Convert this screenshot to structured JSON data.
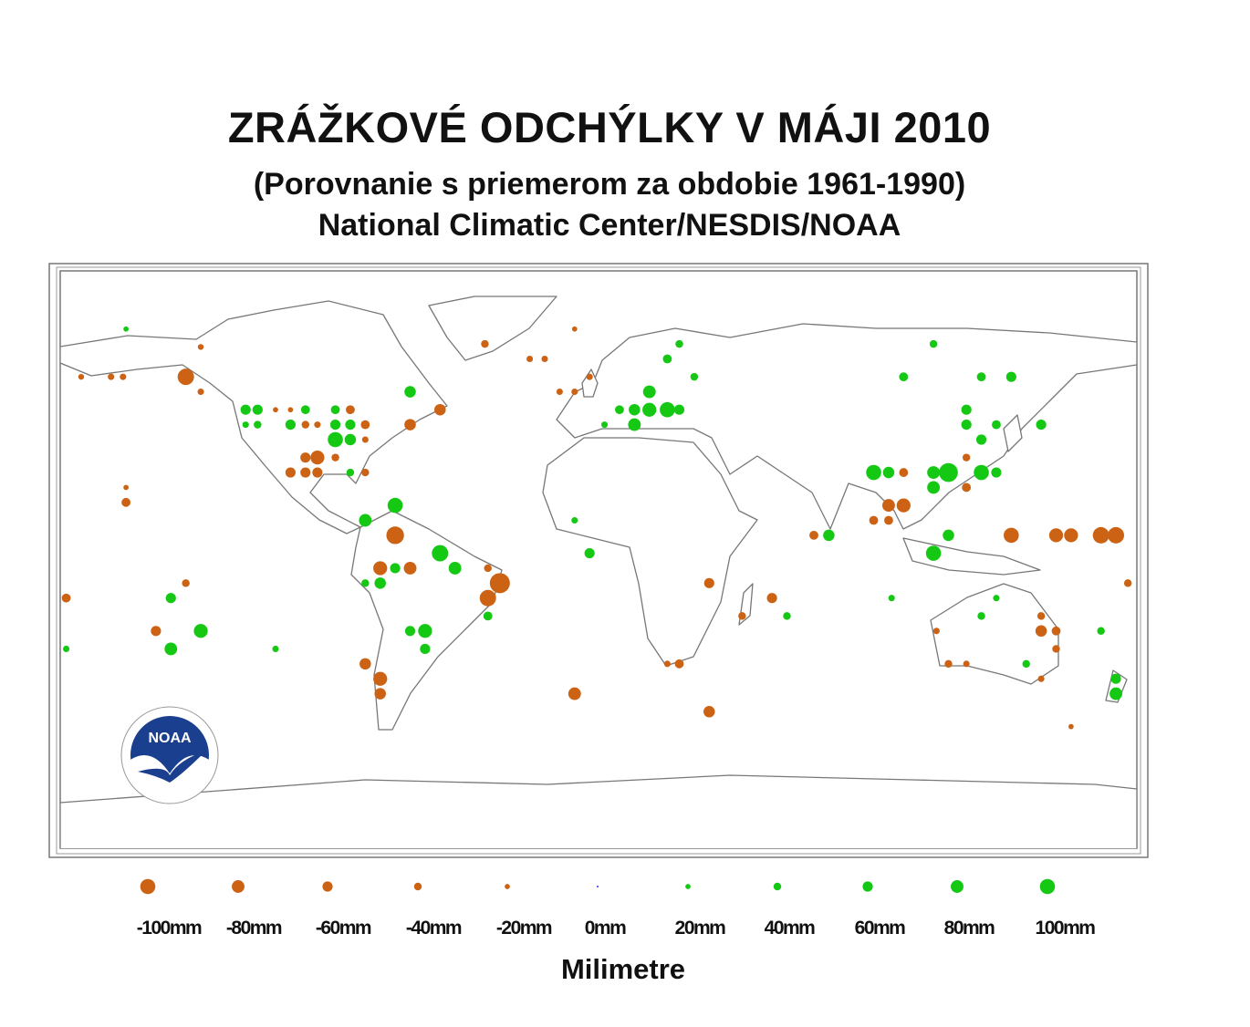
{
  "title": "ZRÁŽKOVÉ ODCHÝLKY V MÁJI 2010",
  "subtitle": "(Porovnanie s priemerom za obdobie 1961-1990)",
  "source": "National Climatic Center/NESDIS/NOAA",
  "logo_text": "NOAA",
  "colors": {
    "deficit": "#cc6214",
    "surplus": "#14c814",
    "zero": "#3333ff"
  },
  "legend": {
    "unit_label": "Milimetre",
    "items": [
      {
        "value": -100,
        "label": "-100mm"
      },
      {
        "value": -80,
        "label": "-80mm"
      },
      {
        "value": -60,
        "label": "-60mm"
      },
      {
        "value": -40,
        "label": "-40mm"
      },
      {
        "value": -20,
        "label": "-20mm"
      },
      {
        "value": 0,
        "label": "0mm"
      },
      {
        "value": 20,
        "label": "20mm"
      },
      {
        "value": 40,
        "label": "40mm"
      },
      {
        "value": 60,
        "label": "60mm"
      },
      {
        "value": 80,
        "label": "80mm"
      },
      {
        "value": 100,
        "label": "100mm"
      }
    ]
  },
  "chart_data": {
    "type": "scatter",
    "projection": "equirectangular",
    "xlim": [
      -180,
      180
    ],
    "ylim": [
      -90,
      90
    ],
    "fields": [
      "lon",
      "lat",
      "anomaly_mm"
    ],
    "points": [
      [
        -138,
        57,
        -110
      ],
      [
        -158,
        73,
        20
      ],
      [
        -133,
        67,
        -25
      ],
      [
        -173,
        57,
        -25
      ],
      [
        -163,
        57,
        -30
      ],
      [
        -159,
        57,
        -30
      ],
      [
        -133,
        52,
        -30
      ],
      [
        -118,
        46,
        60
      ],
      [
        -114,
        46,
        60
      ],
      [
        -108,
        46,
        -20
      ],
      [
        -103,
        46,
        -20
      ],
      [
        -98,
        46,
        50
      ],
      [
        -88,
        46,
        50
      ],
      [
        -83,
        46,
        -50
      ],
      [
        -118,
        41,
        30
      ],
      [
        -114,
        41,
        40
      ],
      [
        -103,
        41,
        60
      ],
      [
        -98,
        41,
        -40
      ],
      [
        -94,
        41,
        -30
      ],
      [
        -88,
        41,
        60
      ],
      [
        -83,
        41,
        60
      ],
      [
        -78,
        41,
        -50
      ],
      [
        -63,
        41,
        -70
      ],
      [
        -53,
        46,
        -70
      ],
      [
        -63,
        52,
        70
      ],
      [
        -88,
        36,
        100
      ],
      [
        -83,
        36,
        70
      ],
      [
        -78,
        36,
        -30
      ],
      [
        -98,
        30,
        -60
      ],
      [
        -94,
        30,
        -90
      ],
      [
        -88,
        30,
        -40
      ],
      [
        -103,
        25,
        -60
      ],
      [
        -98,
        25,
        -60
      ],
      [
        -94,
        25,
        -60
      ],
      [
        -83,
        25,
        40
      ],
      [
        -78,
        25,
        -40
      ],
      [
        -38,
        68,
        -40
      ],
      [
        -158,
        15,
        -50
      ],
      [
        -158,
        20,
        -20
      ],
      [
        -68,
        14,
        100
      ],
      [
        -78,
        9,
        80
      ],
      [
        -68,
        4,
        -120
      ],
      [
        -53,
        -2,
        110
      ],
      [
        -73,
        -7,
        -90
      ],
      [
        -68,
        -7,
        60
      ],
      [
        -63,
        -7,
        -80
      ],
      [
        -48,
        -7,
        80
      ],
      [
        -37,
        -7,
        -40
      ],
      [
        -33,
        -12,
        -140
      ],
      [
        -37,
        -17,
        -110
      ],
      [
        -37,
        -23,
        50
      ],
      [
        -78,
        -12,
        40
      ],
      [
        -73,
        -12,
        70
      ],
      [
        -63,
        -28,
        60
      ],
      [
        -58,
        -28,
        90
      ],
      [
        -58,
        -34,
        60
      ],
      [
        -78,
        -39,
        -70
      ],
      [
        -73,
        -44,
        -90
      ],
      [
        -73,
        -49,
        -70
      ],
      [
        -178,
        -17,
        -50
      ],
      [
        -143,
        -17,
        60
      ],
      [
        -138,
        -12,
        -40
      ],
      [
        -148,
        -28,
        -60
      ],
      [
        -133,
        -28,
        90
      ],
      [
        -143,
        -34,
        80
      ],
      [
        -178,
        -34,
        30
      ],
      [
        -108,
        -34,
        30
      ],
      [
        -8,
        -49,
        -80
      ],
      [
        37,
        -55,
        -70
      ],
      [
        -8,
        73,
        -20
      ],
      [
        -23,
        63,
        -30
      ],
      [
        -18,
        63,
        -30
      ],
      [
        -13,
        52,
        -30
      ],
      [
        -8,
        52,
        -30
      ],
      [
        -3,
        57,
        -30
      ],
      [
        7,
        46,
        50
      ],
      [
        12,
        46,
        70
      ],
      [
        17,
        52,
        80
      ],
      [
        23,
        46,
        100
      ],
      [
        17,
        46,
        90
      ],
      [
        12,
        41,
        80
      ],
      [
        27,
        46,
        60
      ],
      [
        27,
        68,
        40
      ],
      [
        23,
        63,
        50
      ],
      [
        32,
        57,
        40
      ],
      [
        2,
        41,
        30
      ],
      [
        -3,
        -2,
        60
      ],
      [
        -8,
        9,
        30
      ],
      [
        37,
        -12,
        -60
      ],
      [
        58,
        -17,
        -60
      ],
      [
        63,
        -23,
        40
      ],
      [
        48,
        -23,
        -40
      ],
      [
        27,
        -39,
        -50
      ],
      [
        23,
        -39,
        -30
      ],
      [
        112,
        68,
        40
      ],
      [
        102,
        57,
        50
      ],
      [
        128,
        57,
        50
      ],
      [
        138,
        57,
        60
      ],
      [
        123,
        46,
        60
      ],
      [
        123,
        41,
        60
      ],
      [
        133,
        41,
        50
      ],
      [
        148,
        41,
        60
      ],
      [
        128,
        36,
        60
      ],
      [
        123,
        30,
        -40
      ],
      [
        92,
        25,
        100
      ],
      [
        97,
        25,
        70
      ],
      [
        102,
        25,
        -50
      ],
      [
        112,
        25,
        80
      ],
      [
        117,
        25,
        130
      ],
      [
        128,
        25,
        100
      ],
      [
        133,
        25,
        60
      ],
      [
        112,
        20,
        80
      ],
      [
        123,
        20,
        -50
      ],
      [
        97,
        14,
        -80
      ],
      [
        102,
        14,
        -90
      ],
      [
        92,
        9,
        -50
      ],
      [
        97,
        9,
        -50
      ],
      [
        72,
        4,
        -50
      ],
      [
        77,
        4,
        70
      ],
      [
        112,
        -2,
        100
      ],
      [
        117,
        4,
        70
      ],
      [
        138,
        4,
        -100
      ],
      [
        153,
        4,
        -90
      ],
      [
        158,
        4,
        -90
      ],
      [
        168,
        4,
        -110
      ],
      [
        173,
        4,
        -110
      ],
      [
        177,
        -12,
        -40
      ],
      [
        98,
        -17,
        30
      ],
      [
        133,
        -17,
        30
      ],
      [
        128,
        -23,
        40
      ],
      [
        148,
        -23,
        -40
      ],
      [
        148,
        -28,
        -70
      ],
      [
        153,
        -28,
        -50
      ],
      [
        153,
        -34,
        -40
      ],
      [
        117,
        -39,
        -40
      ],
      [
        123,
        -39,
        -30
      ],
      [
        143,
        -39,
        40
      ],
      [
        148,
        -44,
        -30
      ],
      [
        113,
        -28,
        -30
      ],
      [
        173,
        -44,
        60
      ],
      [
        173,
        -49,
        80
      ],
      [
        168,
        -28,
        40
      ],
      [
        158,
        -60,
        -20
      ]
    ]
  }
}
